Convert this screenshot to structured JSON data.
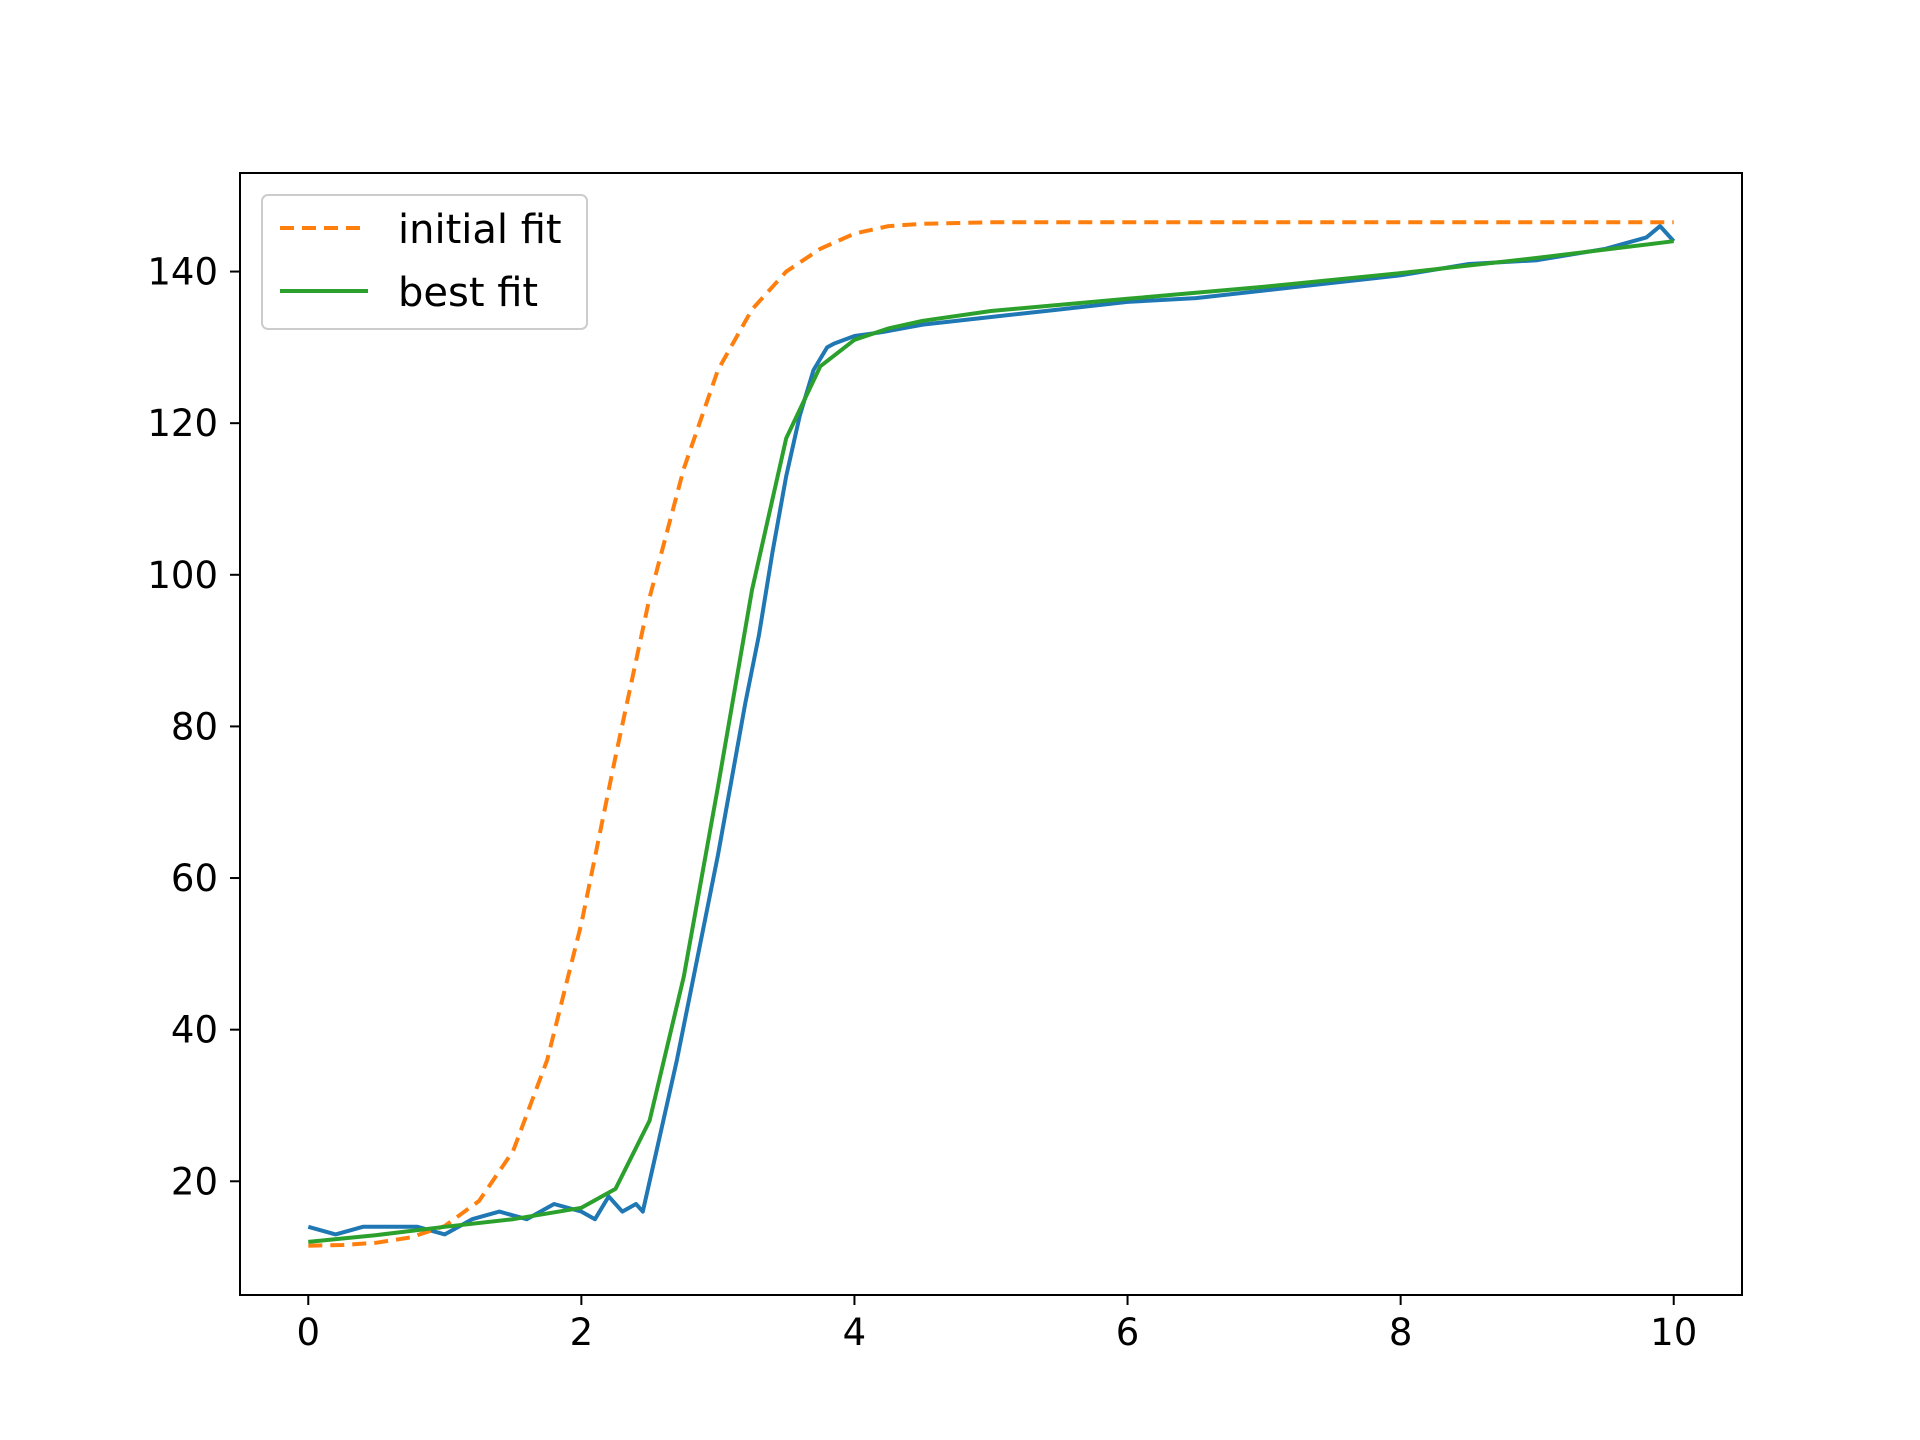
{
  "chart_data": {
    "type": "line",
    "title": "",
    "xlabel": "",
    "ylabel": "",
    "xlim": [
      -0.5,
      10.5
    ],
    "ylim": [
      5,
      153
    ],
    "xticks": [
      0,
      2,
      4,
      6,
      8,
      10
    ],
    "yticks": [
      20,
      40,
      60,
      80,
      100,
      120,
      140
    ],
    "grid": false,
    "legend": {
      "placement": "upper-left",
      "entries": [
        "initial fit",
        "best fit"
      ]
    },
    "series": [
      {
        "role": "data",
        "color": "#1f77b4",
        "style": "solid",
        "x": [
          0.0,
          0.2,
          0.4,
          0.6,
          0.8,
          1.0,
          1.2,
          1.4,
          1.6,
          1.8,
          2.0,
          2.1,
          2.2,
          2.3,
          2.4,
          2.45,
          2.55,
          2.7,
          2.8,
          2.9,
          3.0,
          3.1,
          3.2,
          3.3,
          3.4,
          3.5,
          3.6,
          3.7,
          3.8,
          3.85,
          4.0,
          4.2,
          4.5,
          5.0,
          5.5,
          6.0,
          6.5,
          7.0,
          7.5,
          8.0,
          8.5,
          9.0,
          9.5,
          9.8,
          9.9,
          10.0
        ],
        "y": [
          14,
          13,
          14,
          14,
          14,
          13,
          15,
          16,
          15,
          17,
          16,
          15,
          18,
          16,
          17,
          16,
          24,
          36,
          45,
          54,
          63,
          73,
          83,
          92,
          103,
          113,
          121,
          127,
          130,
          130.5,
          131.5,
          132,
          133,
          134,
          135,
          136,
          136.5,
          137.5,
          138.5,
          139.5,
          141,
          141.5,
          143,
          144.5,
          146,
          144
        ]
      },
      {
        "name": "initial fit",
        "color": "#ff7f0e",
        "style": "dashed",
        "x": [
          0.0,
          0.25,
          0.5,
          0.75,
          1.0,
          1.25,
          1.5,
          1.75,
          2.0,
          2.25,
          2.5,
          2.75,
          3.0,
          3.25,
          3.5,
          3.75,
          4.0,
          4.25,
          4.5,
          5.0,
          6.0,
          7.0,
          8.0,
          9.0,
          10.0
        ],
        "y": [
          11.5,
          11.6,
          11.9,
          12.6,
          14.1,
          17.4,
          24,
          36,
          54,
          76,
          97,
          114,
          127,
          135,
          140,
          143,
          145,
          146,
          146.3,
          146.5,
          146.5,
          146.5,
          146.5,
          146.5,
          146.5
        ]
      },
      {
        "name": "best fit",
        "color": "#2ca02c",
        "style": "solid",
        "x": [
          0.0,
          0.5,
          1.0,
          1.5,
          2.0,
          2.25,
          2.5,
          2.75,
          3.0,
          3.25,
          3.5,
          3.75,
          4.0,
          4.25,
          4.5,
          5.0,
          6.0,
          7.0,
          8.0,
          9.0,
          10.0
        ],
        "y": [
          12,
          12.9,
          14,
          15,
          16.5,
          19,
          28,
          47,
          72,
          98,
          118,
          127.5,
          131,
          132.5,
          133.5,
          134.8,
          136.4,
          138,
          139.8,
          141.8,
          144
        ]
      }
    ]
  }
}
